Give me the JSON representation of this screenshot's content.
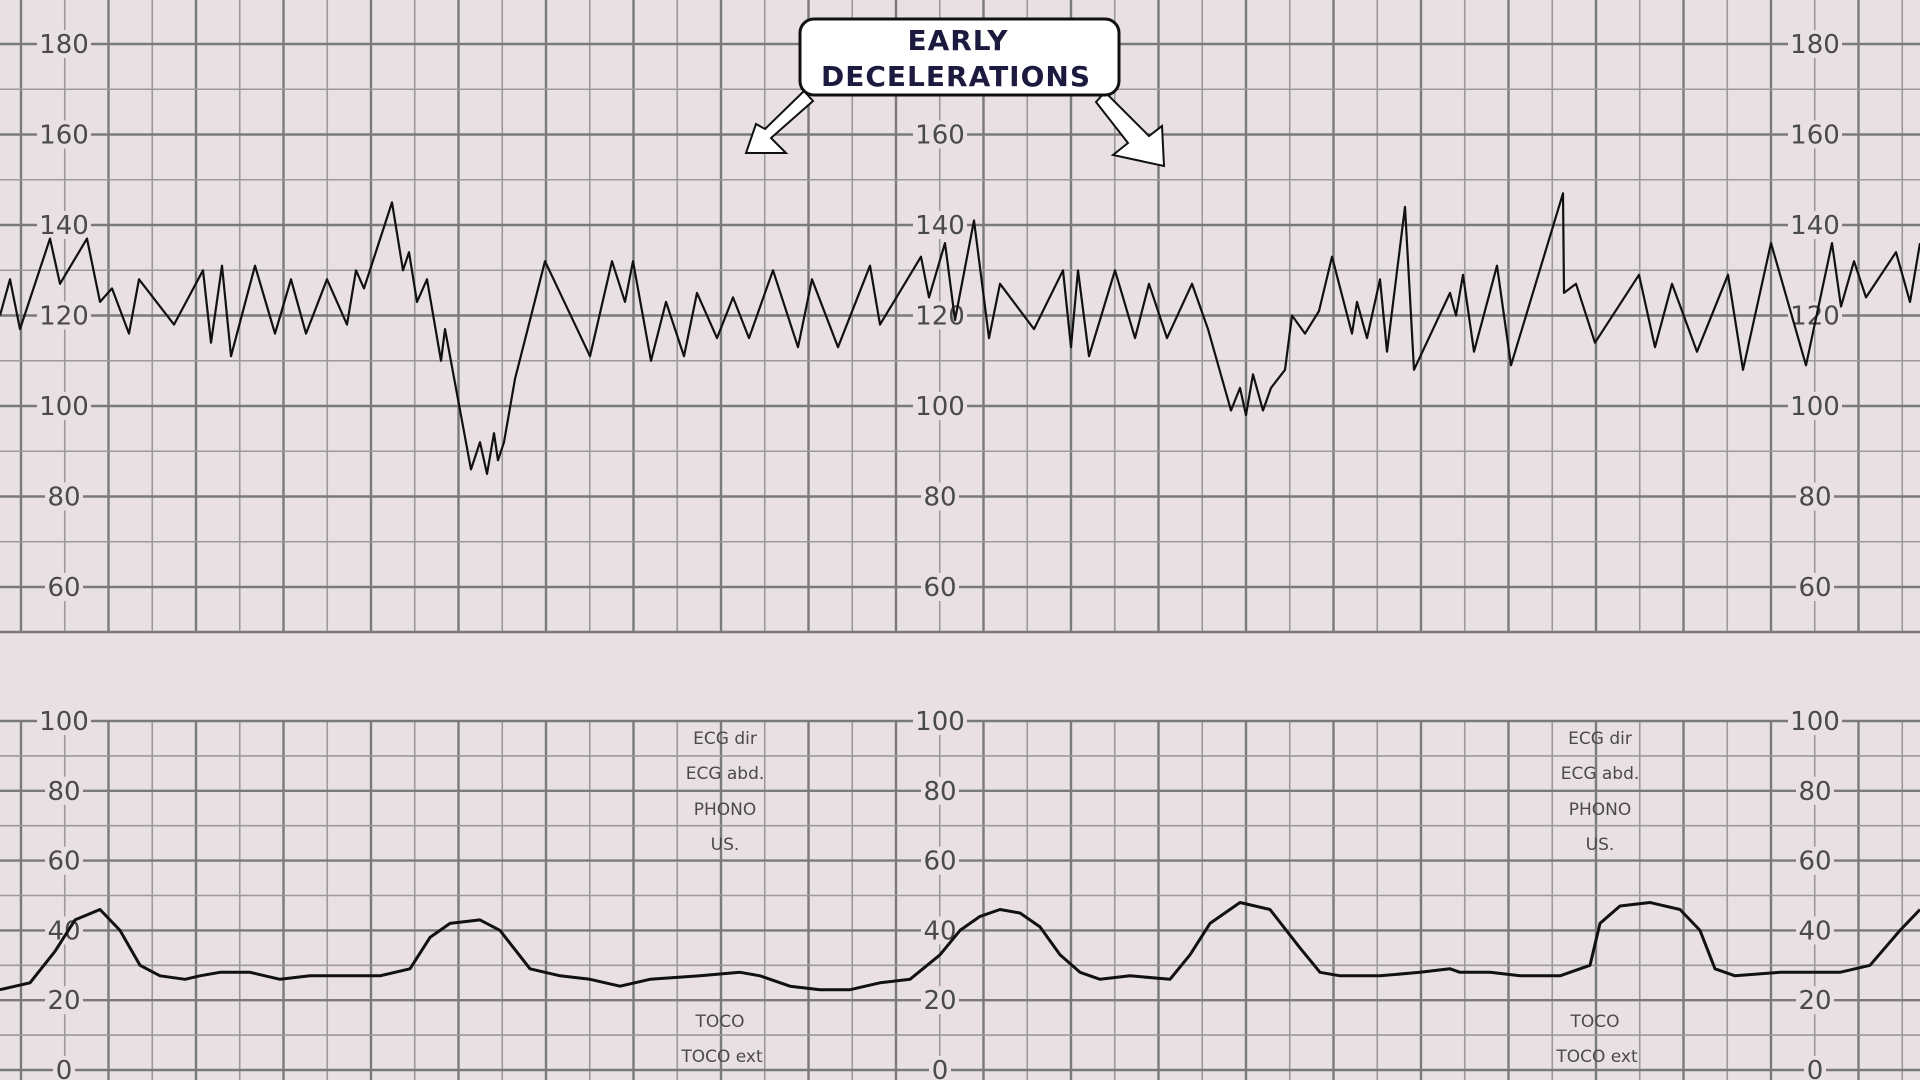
{
  "colors": {
    "background": "#e9e0e4",
    "grid_major": "#7a7a7a",
    "grid_minor": "#999999",
    "trace": "#111111",
    "callout_text": "#1c1a3f"
  },
  "annotation": {
    "lines": [
      "EARLY",
      "DECELERATIONS"
    ]
  },
  "chart_data": [
    {
      "type": "line",
      "title": "",
      "xlabel": "",
      "ylabel": "",
      "ylim": [
        50,
        190
      ],
      "grid": true,
      "y_ticks": [
        "180",
        "160",
        "140",
        "120",
        "100",
        "80",
        "60"
      ],
      "series": [
        {
          "values": [
            [
              0,
              120
            ],
            [
              10,
              128
            ],
            [
              20,
              117
            ],
            [
              50,
              137
            ],
            [
              60,
              127
            ],
            [
              87,
              137
            ],
            [
              100,
              123
            ],
            [
              112,
              126
            ],
            [
              129,
              116
            ],
            [
              139,
              128
            ],
            [
              174,
              118
            ],
            [
              203,
              130
            ],
            [
              211,
              114
            ],
            [
              222,
              131
            ],
            [
              231,
              111
            ],
            [
              255,
              131
            ],
            [
              275,
              116
            ],
            [
              291,
              128
            ],
            [
              306,
              116
            ],
            [
              327,
              128
            ],
            [
              347,
              118
            ],
            [
              356,
              130
            ],
            [
              364,
              126
            ],
            [
              392,
              145
            ],
            [
              403,
              130
            ],
            [
              409,
              134
            ],
            [
              417,
              123
            ],
            [
              427,
              128
            ],
            [
              441,
              110
            ],
            [
              445,
              117
            ],
            [
              471,
              86
            ],
            [
              480,
              92
            ],
            [
              487,
              85
            ],
            [
              494,
              94
            ],
            [
              498,
              88
            ],
            [
              504,
              92
            ],
            [
              515,
              106
            ],
            [
              545,
              132
            ],
            [
              590,
              111
            ],
            [
              612,
              132
            ],
            [
              625,
              123
            ],
            [
              633,
              132
            ],
            [
              651,
              110
            ],
            [
              666,
              123
            ],
            [
              684,
              111
            ],
            [
              697,
              125
            ],
            [
              717,
              115
            ],
            [
              733,
              124
            ],
            [
              749,
              115
            ],
            [
              773,
              130
            ],
            [
              798,
              113
            ],
            [
              812,
              128
            ],
            [
              838,
              113
            ],
            [
              870,
              131
            ],
            [
              880,
              118
            ],
            [
              921,
              133
            ],
            [
              929,
              124
            ],
            [
              945,
              136
            ],
            [
              955,
              119
            ],
            [
              974,
              141
            ],
            [
              989,
              115
            ],
            [
              1000,
              127
            ],
            [
              1034,
              117
            ],
            [
              1063,
              130
            ],
            [
              1071,
              113
            ],
            [
              1078,
              130
            ],
            [
              1089,
              111
            ],
            [
              1115,
              130
            ],
            [
              1135,
              115
            ],
            [
              1149,
              127
            ],
            [
              1167,
              115
            ],
            [
              1192,
              127
            ],
            [
              1208,
              117
            ],
            [
              1231,
              99
            ],
            [
              1240,
              104
            ],
            [
              1246,
              98
            ],
            [
              1253,
              107
            ],
            [
              1263,
              99
            ],
            [
              1271,
              104
            ],
            [
              1285,
              108
            ],
            [
              1292,
              120
            ],
            [
              1305,
              116
            ],
            [
              1319,
              121
            ],
            [
              1332,
              133
            ],
            [
              1352,
              116
            ],
            [
              1357,
              123
            ],
            [
              1367,
              115
            ],
            [
              1380,
              128
            ],
            [
              1387,
              112
            ],
            [
              1405,
              144
            ],
            [
              1414,
              108
            ],
            [
              1450,
              125
            ],
            [
              1456,
              120
            ],
            [
              1463,
              129
            ],
            [
              1474,
              112
            ],
            [
              1497,
              131
            ],
            [
              1511,
              109
            ],
            [
              1563,
              147
            ],
            [
              1564,
              125
            ],
            [
              1576,
              127
            ],
            [
              1595,
              114
            ],
            [
              1639,
              129
            ],
            [
              1655,
              113
            ],
            [
              1672,
              127
            ],
            [
              1697,
              112
            ],
            [
              1728,
              129
            ],
            [
              1743,
              108
            ],
            [
              1771,
              136
            ],
            [
              1806,
              109
            ],
            [
              1832,
              136
            ],
            [
              1841,
              122
            ],
            [
              1854,
              132
            ],
            [
              1866,
              124
            ],
            [
              1896,
              134
            ],
            [
              1910,
              123
            ],
            [
              1920,
              136
            ]
          ]
        }
      ]
    },
    {
      "type": "line",
      "title": "",
      "xlabel": "",
      "ylabel": "",
      "ylim": [
        0,
        100
      ],
      "grid": true,
      "y_ticks": [
        "100",
        "80",
        "60",
        "40",
        "20",
        "0"
      ],
      "series": [
        {
          "values": [
            [
              0,
              23
            ],
            [
              30,
              25
            ],
            [
              55,
              34
            ],
            [
              75,
              43
            ],
            [
              100,
              46
            ],
            [
              120,
              40
            ],
            [
              140,
              30
            ],
            [
              160,
              27
            ],
            [
              185,
              26
            ],
            [
              200,
              27
            ],
            [
              220,
              28
            ],
            [
              250,
              28
            ],
            [
              280,
              26
            ],
            [
              310,
              27
            ],
            [
              350,
              27
            ],
            [
              380,
              27
            ],
            [
              410,
              29
            ],
            [
              430,
              38
            ],
            [
              450,
              42
            ],
            [
              480,
              43
            ],
            [
              500,
              40
            ],
            [
              530,
              29
            ],
            [
              560,
              27
            ],
            [
              590,
              26
            ],
            [
              620,
              24
            ],
            [
              650,
              26
            ],
            [
              700,
              27
            ],
            [
              740,
              28
            ],
            [
              760,
              27
            ],
            [
              790,
              24
            ],
            [
              820,
              23
            ],
            [
              850,
              23
            ],
            [
              880,
              25
            ],
            [
              910,
              26
            ],
            [
              940,
              33
            ],
            [
              960,
              40
            ],
            [
              980,
              44
            ],
            [
              1000,
              46
            ],
            [
              1020,
              45
            ],
            [
              1040,
              41
            ],
            [
              1060,
              33
            ],
            [
              1080,
              28
            ],
            [
              1100,
              26
            ],
            [
              1130,
              27
            ],
            [
              1170,
              26
            ],
            [
              1190,
              33
            ],
            [
              1210,
              42
            ],
            [
              1240,
              48
            ],
            [
              1270,
              46
            ],
            [
              1300,
              35
            ],
            [
              1320,
              28
            ],
            [
              1340,
              27
            ],
            [
              1380,
              27
            ],
            [
              1420,
              28
            ],
            [
              1450,
              29
            ],
            [
              1460,
              28
            ],
            [
              1490,
              28
            ],
            [
              1520,
              27
            ],
            [
              1560,
              27
            ],
            [
              1590,
              30
            ],
            [
              1600,
              42
            ],
            [
              1620,
              47
            ],
            [
              1650,
              48
            ],
            [
              1680,
              46
            ],
            [
              1700,
              40
            ],
            [
              1715,
              29
            ],
            [
              1735,
              27
            ],
            [
              1780,
              28
            ],
            [
              1840,
              28
            ],
            [
              1870,
              30
            ],
            [
              1900,
              40
            ],
            [
              1920,
              46
            ]
          ]
        }
      ]
    }
  ],
  "channel_labels": {
    "left": [
      "ECG dir",
      "ECG abd.",
      "PHONO",
      "US."
    ],
    "left_bottom": [
      "TOCO",
      "TOCO ext"
    ],
    "right": [
      "ECG dir",
      "ECG abd.",
      "PHONO",
      "US."
    ],
    "right_bottom": [
      "TOCO",
      "TOCO ext"
    ]
  }
}
